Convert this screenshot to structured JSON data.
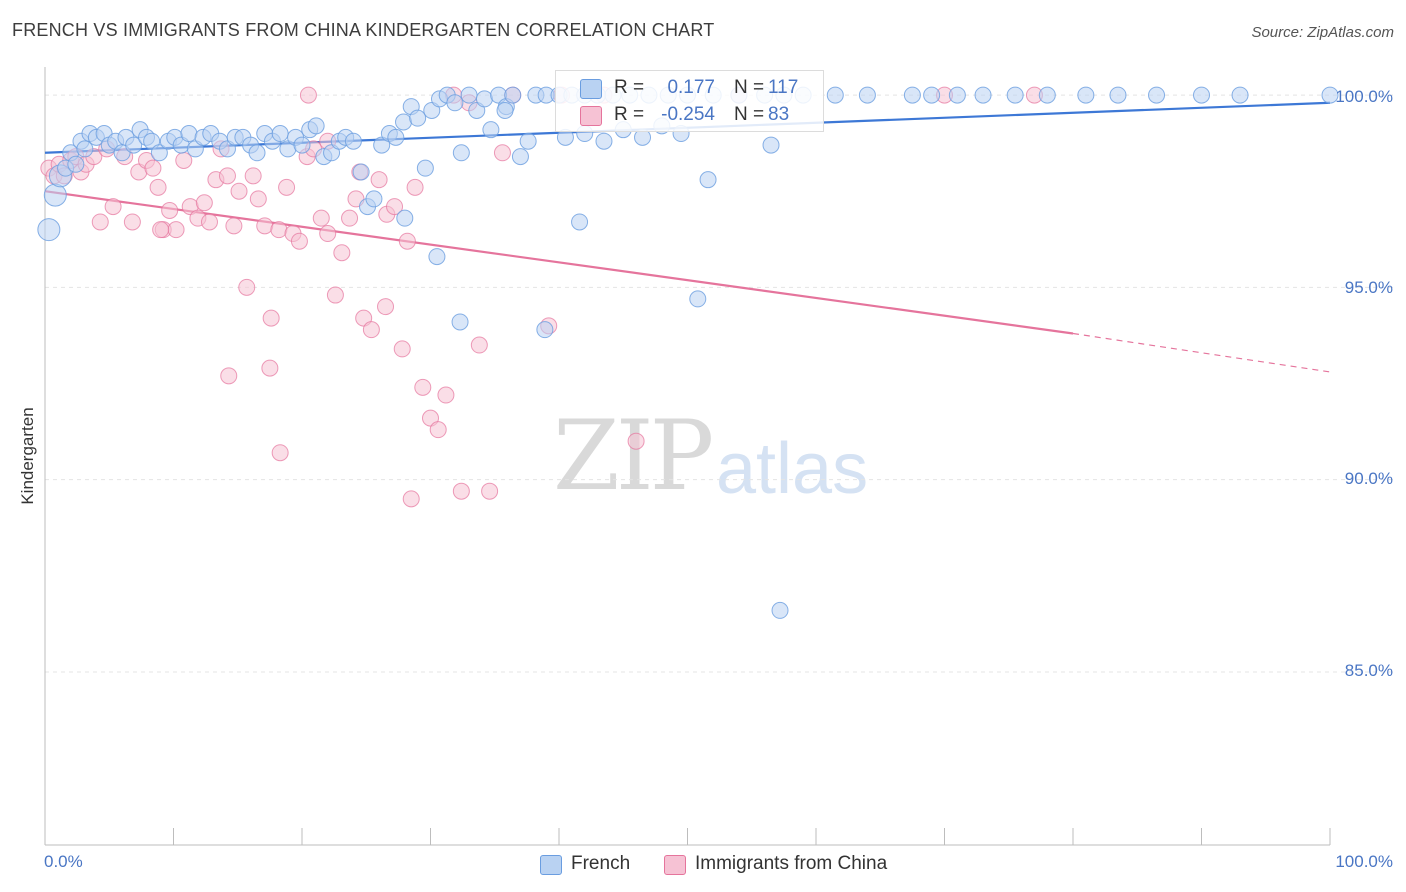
{
  "title": "FRENCH VS IMMIGRANTS FROM CHINA KINDERGARTEN CORRELATION CHART",
  "source": "Source: ZipAtlas.com",
  "watermark": {
    "zip": "ZIP",
    "atlas": "atlas"
  },
  "colors": {
    "french": "#6a9de0",
    "french_fill": "#b9d2f2",
    "china": "#e5749c",
    "china_fill": "#f6c2d4",
    "tick_text": "#4a76c4",
    "grid": "#e4e4e4"
  },
  "legend_top": {
    "french": {
      "r_label": "R =",
      "r_value": "0.177",
      "n_label": "N =",
      "n_value": "117"
    },
    "china": {
      "r_label": "R =",
      "r_value": "-0.254",
      "n_label": "N =",
      "n_value": "83"
    }
  },
  "legend_bottom": {
    "french": "French",
    "china": "Immigrants from China"
  },
  "chart_data": {
    "type": "scatter",
    "title": "FRENCH VS IMMIGRANTS FROM CHINA KINDERGARTEN CORRELATION CHART",
    "xlabel": "",
    "ylabel": "Kindergarten",
    "xlim": [
      0,
      100
    ],
    "ylim": [
      80.5,
      100.6
    ],
    "x_tick_labels": [
      "0.0%",
      "100.0%"
    ],
    "y_ticks": [
      85,
      90,
      95,
      100
    ],
    "y_tick_labels": [
      "85.0%",
      "90.0%",
      "95.0%",
      "100.0%"
    ],
    "grid": true,
    "legend_position": "top-center",
    "series": [
      {
        "name": "French",
        "r": 0.177,
        "n": 117,
        "trend": {
          "x": [
            0,
            100
          ],
          "y": [
            98.5,
            99.8
          ]
        },
        "points": [
          [
            0.3,
            96.5
          ],
          [
            0.8,
            97.4
          ],
          [
            1.2,
            97.9
          ],
          [
            1.6,
            98.1
          ],
          [
            2.0,
            98.5
          ],
          [
            2.4,
            98.2
          ],
          [
            2.8,
            98.8
          ],
          [
            3.1,
            98.6
          ],
          [
            3.5,
            99.0
          ],
          [
            4.0,
            98.9
          ],
          [
            4.6,
            99.0
          ],
          [
            5.0,
            98.7
          ],
          [
            5.5,
            98.8
          ],
          [
            6.0,
            98.5
          ],
          [
            6.3,
            98.9
          ],
          [
            6.9,
            98.7
          ],
          [
            7.4,
            99.1
          ],
          [
            7.9,
            98.9
          ],
          [
            8.3,
            98.8
          ],
          [
            8.9,
            98.5
          ],
          [
            9.6,
            98.8
          ],
          [
            10.1,
            98.9
          ],
          [
            10.6,
            98.7
          ],
          [
            11.2,
            99.0
          ],
          [
            11.7,
            98.6
          ],
          [
            12.3,
            98.9
          ],
          [
            12.9,
            99.0
          ],
          [
            13.6,
            98.8
          ],
          [
            14.2,
            98.6
          ],
          [
            14.8,
            98.9
          ],
          [
            15.4,
            98.9
          ],
          [
            16.0,
            98.7
          ],
          [
            16.5,
            98.5
          ],
          [
            17.1,
            99.0
          ],
          [
            17.7,
            98.8
          ],
          [
            18.3,
            99.0
          ],
          [
            18.9,
            98.6
          ],
          [
            19.5,
            98.9
          ],
          [
            20.0,
            98.7
          ],
          [
            20.6,
            99.1
          ],
          [
            21.1,
            99.2
          ],
          [
            21.7,
            98.4
          ],
          [
            22.3,
            98.5
          ],
          [
            22.9,
            98.8
          ],
          [
            23.4,
            98.9
          ],
          [
            24.0,
            98.8
          ],
          [
            24.6,
            98.0
          ],
          [
            25.1,
            97.1
          ],
          [
            25.6,
            97.3
          ],
          [
            26.2,
            98.7
          ],
          [
            26.8,
            99.0
          ],
          [
            27.3,
            98.9
          ],
          [
            27.9,
            99.3
          ],
          [
            28.5,
            99.7
          ],
          [
            29.0,
            99.4
          ],
          [
            29.6,
            98.1
          ],
          [
            30.1,
            99.6
          ],
          [
            30.7,
            99.9
          ],
          [
            31.3,
            100.0
          ],
          [
            31.9,
            99.8
          ],
          [
            32.4,
            98.5
          ],
          [
            33.0,
            100.0
          ],
          [
            33.6,
            99.6
          ],
          [
            34.2,
            99.9
          ],
          [
            34.7,
            99.1
          ],
          [
            35.3,
            100.0
          ],
          [
            35.9,
            99.7
          ],
          [
            36.4,
            100.0
          ],
          [
            37.0,
            98.4
          ],
          [
            37.6,
            98.8
          ],
          [
            38.2,
            100.0
          ],
          [
            39.0,
            100.0
          ],
          [
            40.0,
            100.0
          ],
          [
            41.0,
            100.0
          ],
          [
            42.0,
            100.0
          ],
          [
            43.0,
            100.0
          ],
          [
            44.2,
            100.0
          ],
          [
            45.5,
            100.0
          ],
          [
            47.0,
            100.0
          ],
          [
            48.5,
            100.0
          ],
          [
            50.0,
            100.0
          ],
          [
            52.0,
            100.0
          ],
          [
            54.0,
            100.0
          ],
          [
            56.0,
            100.0
          ],
          [
            57.5,
            100.0
          ],
          [
            59.0,
            100.0
          ],
          [
            61.5,
            100.0
          ],
          [
            64.0,
            100.0
          ],
          [
            67.5,
            100.0
          ],
          [
            69.0,
            100.0
          ],
          [
            71.0,
            100.0
          ],
          [
            73.0,
            100.0
          ],
          [
            75.5,
            100.0
          ],
          [
            78.0,
            100.0
          ],
          [
            81.0,
            100.0
          ],
          [
            83.5,
            100.0
          ],
          [
            86.5,
            100.0
          ],
          [
            90.0,
            100.0
          ],
          [
            93.0,
            100.0
          ],
          [
            100.0,
            100.0
          ],
          [
            28.0,
            96.8
          ],
          [
            30.5,
            95.8
          ],
          [
            32.3,
            94.1
          ],
          [
            38.9,
            93.9
          ],
          [
            41.6,
            96.7
          ],
          [
            50.8,
            94.7
          ],
          [
            51.6,
            97.8
          ],
          [
            56.5,
            98.7
          ],
          [
            57.2,
            86.6
          ],
          [
            40.5,
            98.9
          ],
          [
            42.0,
            99.0
          ],
          [
            43.5,
            98.8
          ],
          [
            45.0,
            99.1
          ],
          [
            46.5,
            98.9
          ],
          [
            48.0,
            99.2
          ],
          [
            49.5,
            99.0
          ],
          [
            35.8,
            99.6
          ]
        ]
      },
      {
        "name": "Immigrants from China",
        "r": -0.254,
        "n": 83,
        "trend": {
          "x": [
            0,
            80
          ],
          "y": [
            97.5,
            93.8
          ],
          "dashed_to": {
            "x": 100,
            "y": 92.8
          }
        },
        "points": [
          [
            0.3,
            98.1
          ],
          [
            0.7,
            97.9
          ],
          [
            1.1,
            98.2
          ],
          [
            1.5,
            97.9
          ],
          [
            2.0,
            98.3
          ],
          [
            2.4,
            98.4
          ],
          [
            2.8,
            98.0
          ],
          [
            3.2,
            98.2
          ],
          [
            3.8,
            98.4
          ],
          [
            4.3,
            96.7
          ],
          [
            4.8,
            98.6
          ],
          [
            5.3,
            97.1
          ],
          [
            6.2,
            98.4
          ],
          [
            6.8,
            96.7
          ],
          [
            7.3,
            98.0
          ],
          [
            7.9,
            98.3
          ],
          [
            8.4,
            98.1
          ],
          [
            8.8,
            97.6
          ],
          [
            9.2,
            96.5
          ],
          [
            9.7,
            97.0
          ],
          [
            10.2,
            96.5
          ],
          [
            10.8,
            98.3
          ],
          [
            11.3,
            97.1
          ],
          [
            11.9,
            96.8
          ],
          [
            12.4,
            97.2
          ],
          [
            12.8,
            96.7
          ],
          [
            13.3,
            97.8
          ],
          [
            13.7,
            98.6
          ],
          [
            14.2,
            97.9
          ],
          [
            14.7,
            96.6
          ],
          [
            15.1,
            97.5
          ],
          [
            15.7,
            95.0
          ],
          [
            16.2,
            97.9
          ],
          [
            16.6,
            97.3
          ],
          [
            17.1,
            96.6
          ],
          [
            17.6,
            94.2
          ],
          [
            18.2,
            96.5
          ],
          [
            18.8,
            97.6
          ],
          [
            19.3,
            96.4
          ],
          [
            19.8,
            96.2
          ],
          [
            20.4,
            98.4
          ],
          [
            20.9,
            98.6
          ],
          [
            21.5,
            96.8
          ],
          [
            22.0,
            96.4
          ],
          [
            22.6,
            94.8
          ],
          [
            23.1,
            95.9
          ],
          [
            23.7,
            96.8
          ],
          [
            24.2,
            97.3
          ],
          [
            24.8,
            94.2
          ],
          [
            25.4,
            93.9
          ],
          [
            26.0,
            97.8
          ],
          [
            26.6,
            96.9
          ],
          [
            27.2,
            97.1
          ],
          [
            27.8,
            93.4
          ],
          [
            28.2,
            96.2
          ],
          [
            28.8,
            97.6
          ],
          [
            29.4,
            92.4
          ],
          [
            30.0,
            91.6
          ],
          [
            30.6,
            91.3
          ],
          [
            31.2,
            92.2
          ],
          [
            31.8,
            100.0
          ],
          [
            32.4,
            89.7
          ],
          [
            33.0,
            99.8
          ],
          [
            33.8,
            93.5
          ],
          [
            34.6,
            89.7
          ],
          [
            35.6,
            98.5
          ],
          [
            36.4,
            100.0
          ],
          [
            39.2,
            94.0
          ],
          [
            40.2,
            100.0
          ],
          [
            43.5,
            100.0
          ],
          [
            46.0,
            91.0
          ],
          [
            54.0,
            100.0
          ],
          [
            70.0,
            100.0
          ],
          [
            77.0,
            100.0
          ],
          [
            9.0,
            96.5
          ],
          [
            14.3,
            92.7
          ],
          [
            17.5,
            92.9
          ],
          [
            18.3,
            90.7
          ],
          [
            28.5,
            89.5
          ],
          [
            20.5,
            100.0
          ],
          [
            24.5,
            98.0
          ],
          [
            26.5,
            94.5
          ],
          [
            22.0,
            98.8
          ]
        ]
      }
    ]
  }
}
